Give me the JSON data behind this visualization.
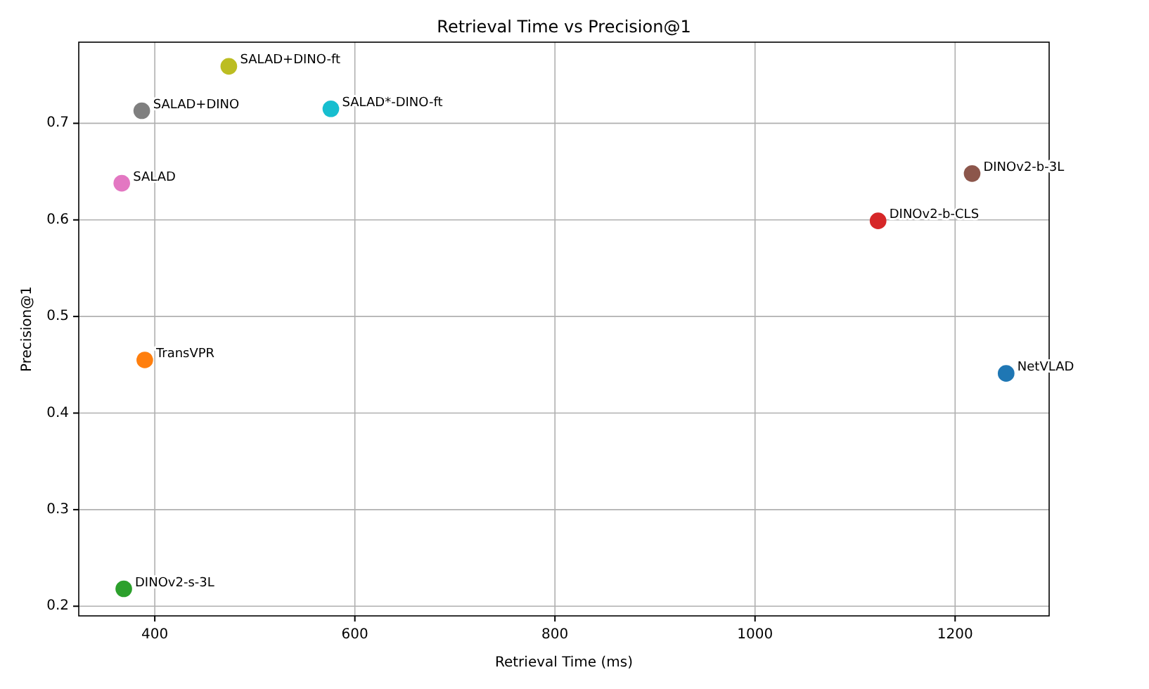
{
  "chart_data": {
    "type": "scatter",
    "title": "Retrieval Time vs Precision@1",
    "xlabel": "Retrieval Time (ms)",
    "ylabel": "Precision@1",
    "xlim": [
      324,
      1294
    ],
    "xticks": [
      400,
      600,
      800,
      1000,
      1200
    ],
    "ylim": [
      0.19,
      0.784
    ],
    "yticks": [
      0.2,
      0.3,
      0.4,
      0.5,
      0.6,
      0.7
    ],
    "grid": true,
    "marker": "circle",
    "series": [
      {
        "name": "NetVLAD",
        "color": "#1f77b4",
        "x": [
          1251
        ],
        "values": [
          0.441
        ]
      },
      {
        "name": "TransVPR",
        "color": "#ff7f0e",
        "x": [
          390
        ],
        "values": [
          0.455
        ]
      },
      {
        "name": "DINOv2-s-3L",
        "color": "#2ca02c",
        "x": [
          369
        ],
        "values": [
          0.218
        ]
      },
      {
        "name": "DINOv2-b-CLS",
        "color": "#d62728",
        "x": [
          1123
        ],
        "values": [
          0.599
        ]
      },
      {
        "name": "DINOv2-b-3L",
        "color": "#8c564b",
        "x": [
          1217
        ],
        "values": [
          0.648
        ]
      },
      {
        "name": "SALAD",
        "color": "#e377c2",
        "x": [
          367
        ],
        "values": [
          0.638
        ]
      },
      {
        "name": "SALAD+DINO",
        "color": "#7f7f7f",
        "x": [
          387
        ],
        "values": [
          0.713
        ]
      },
      {
        "name": "SALAD+DINO-ft",
        "color": "#bcbd22",
        "x": [
          474
        ],
        "values": [
          0.759
        ]
      },
      {
        "name": "SALAD*-DINO-ft",
        "color": "#17becf",
        "x": [
          576
        ],
        "values": [
          0.715
        ]
      }
    ]
  }
}
